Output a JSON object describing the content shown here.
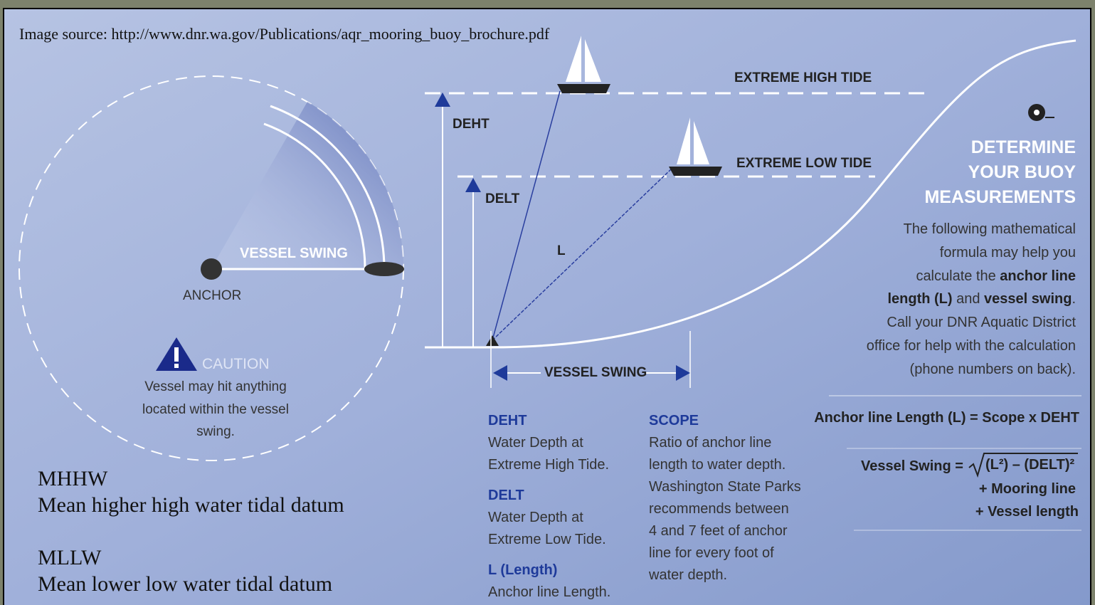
{
  "source": "Image source: http://www.dnr.wa.gov/Publications/aqr_mooring_buoy_brochure.pdf",
  "swing_diagram": {
    "vessel_swing": "VESSEL SWING",
    "anchor": "ANCHOR",
    "caution": "CAUTION",
    "caution_lines": [
      "Vessel may hit anything",
      "located within the vessel",
      "swing."
    ]
  },
  "legend": [
    {
      "abbr": "MHHW",
      "meaning": "Mean higher high water tidal datum"
    },
    {
      "abbr": "MLLW",
      "meaning": "Mean lower low water tidal datum"
    }
  ],
  "tide_diagram": {
    "high_tide": "EXTREME HIGH TIDE",
    "low_tide": "EXTREME LOW TIDE",
    "deht": "DEHT",
    "delt": "DELT",
    "length": "L",
    "vessel_swing": "VESSEL SWING"
  },
  "definitions": [
    {
      "term": "DEHT",
      "lines": [
        "Water Depth at",
        "Extreme High Tide."
      ]
    },
    {
      "term": "DELT",
      "lines": [
        "Water Depth at",
        "Extreme Low Tide."
      ]
    },
    {
      "term": "L (Length)",
      "lines": [
        "Anchor line Length."
      ]
    }
  ],
  "scope": {
    "term": "SCOPE",
    "lines": [
      "Ratio of anchor line",
      "length to water depth.",
      "Washington State Parks",
      "recommends between",
      "4 and 7 feet of anchor",
      "line for every foot of",
      "water depth."
    ]
  },
  "panel": {
    "title_lines": [
      "DETERMINE",
      "YOUR BUOY",
      "MEASUREMENTS"
    ],
    "intro_lines": [
      [
        {
          "text": "The following mathematical"
        }
      ],
      [
        {
          "text": "formula may help you"
        }
      ],
      [
        {
          "text": "calculate the "
        },
        {
          "text": "anchor line",
          "bold": true
        }
      ],
      [
        {
          "text": "length (L)",
          "bold": true
        },
        {
          "text": " and "
        },
        {
          "text": "vessel swing",
          "bold": true
        },
        {
          "text": "."
        }
      ],
      [
        {
          "text": "Call your DNR Aquatic District"
        }
      ],
      [
        {
          "text": "office for help with the calculation"
        }
      ],
      [
        {
          "text": "(phone numbers on back)."
        }
      ]
    ],
    "formula_length": "Anchor line Length (L) = Scope x DEHT",
    "formula_swing": {
      "lhs": "Vessel Swing =",
      "radicand": "(L²) – (DELT)²",
      "addends": [
        "+ Mooring line",
        "+ Vessel length"
      ]
    }
  }
}
